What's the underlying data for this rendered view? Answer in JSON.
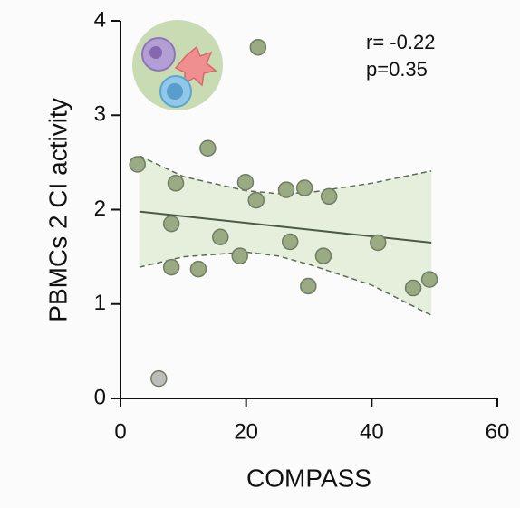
{
  "chart_data": {
    "type": "scatter",
    "xlabel": "COMPASS",
    "ylabel": "PBMCs 2 CI activity",
    "annotations": [
      "r= -0.22",
      "p=0.35"
    ],
    "x": [
      2.7,
      6.1,
      8.1,
      8.8,
      8.1,
      12.4,
      13.9,
      15.9,
      19.0,
      19.9,
      21.6,
      21.9,
      26.4,
      27.0,
      29.3,
      29.9,
      32.3,
      33.2,
      41.0,
      46.6,
      49.2
    ],
    "values": [
      2.48,
      0.21,
      1.85,
      2.28,
      1.39,
      1.37,
      2.65,
      1.71,
      1.51,
      2.29,
      2.1,
      3.72,
      2.21,
      1.66,
      2.23,
      1.19,
      1.51,
      2.14,
      1.65,
      1.17,
      1.26
    ],
    "colors": [
      "#9aab84",
      "#bdbdbd",
      "#9aab84",
      "#9aab84",
      "#9aab84",
      "#9aab84",
      "#9aab84",
      "#9aab84",
      "#9aab84",
      "#9aab84",
      "#9aab84",
      "#9aab84",
      "#9aab84",
      "#9aab84",
      "#9aab84",
      "#9aab84",
      "#9aab84",
      "#9aab84",
      "#9aab84",
      "#9aab84",
      "#9aab84"
    ],
    "fit": {
      "x": [
        3,
        49.5
      ],
      "y": [
        1.98,
        1.65
      ],
      "color": "#4a5a44"
    },
    "band": {
      "x": [
        3,
        10,
        20,
        25,
        30,
        40,
        49.5
      ],
      "upper": [
        2.57,
        2.35,
        2.2,
        2.17,
        2.18,
        2.28,
        2.41
      ],
      "lower": [
        1.39,
        1.5,
        1.55,
        1.51,
        1.42,
        1.2,
        0.88
      ],
      "color": "#e6eedc"
    },
    "xlim": [
      0,
      60
    ],
    "ylim": [
      0,
      4
    ],
    "xticks": [
      0,
      20,
      40,
      60
    ],
    "yticks": [
      0,
      1,
      2,
      3,
      4
    ]
  }
}
